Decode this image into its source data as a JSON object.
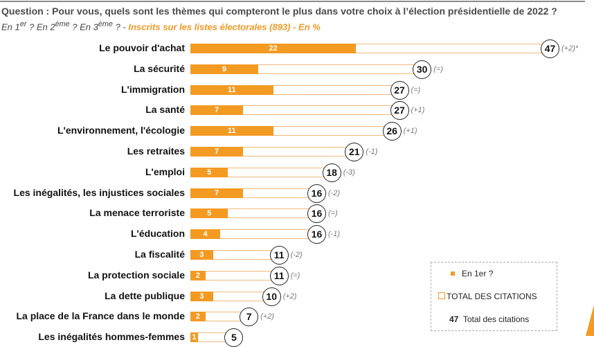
{
  "chart_data": {
    "type": "bar",
    "title": "Question : Pour vous, quels sont les thèmes qui compteront le plus dans votre choix à l’élection présidentielle de 2022 ?",
    "subtitle_prefix": "En 1er ? En 2ème ? En 3ème ? - ",
    "subtitle_highlight": "Inscrits sur les listes électorales (893) - En %",
    "categories": [
      "Le pouvoir d'achat",
      "La sécurité",
      "L'immigration",
      "La santé",
      "L'environnement, l'écologie",
      "Les retraites",
      "L'emploi",
      "Les inégalités, les injustices sociales",
      "La menace terroriste",
      "L'éducation",
      "La fiscalité",
      "La protection sociale",
      "La dette publique",
      "La place de la France dans le monde",
      "Les inégalités hommes-femmes"
    ],
    "series": [
      {
        "name": "En 1er ?",
        "values": [
          22,
          9,
          11,
          7,
          11,
          7,
          5,
          7,
          5,
          4,
          3,
          2,
          3,
          2,
          1
        ]
      },
      {
        "name": "TOTAL DES CITATIONS",
        "values": [
          47,
          30,
          27,
          27,
          26,
          21,
          18,
          16,
          16,
          16,
          11,
          11,
          10,
          7,
          5
        ]
      }
    ],
    "changes": [
      "(+2)*",
      "(=)",
      "(=)",
      "(+1)",
      "(+1)",
      "(-1)",
      "(-3)",
      "(-2)",
      "(=)",
      "(-1)",
      "(-2)",
      "(=)",
      "(+2)",
      "(+2)",
      ""
    ],
    "colors": {
      "first": "#f39a23",
      "total_border": "#eeb97a"
    },
    "legend": {
      "first": "En 1er ?",
      "total": "TOTAL DES CITATIONS",
      "example_value": "47",
      "example_label": "Total des citations",
      "placement": "bottom-right"
    },
    "xlim": [
      0,
      47
    ]
  }
}
